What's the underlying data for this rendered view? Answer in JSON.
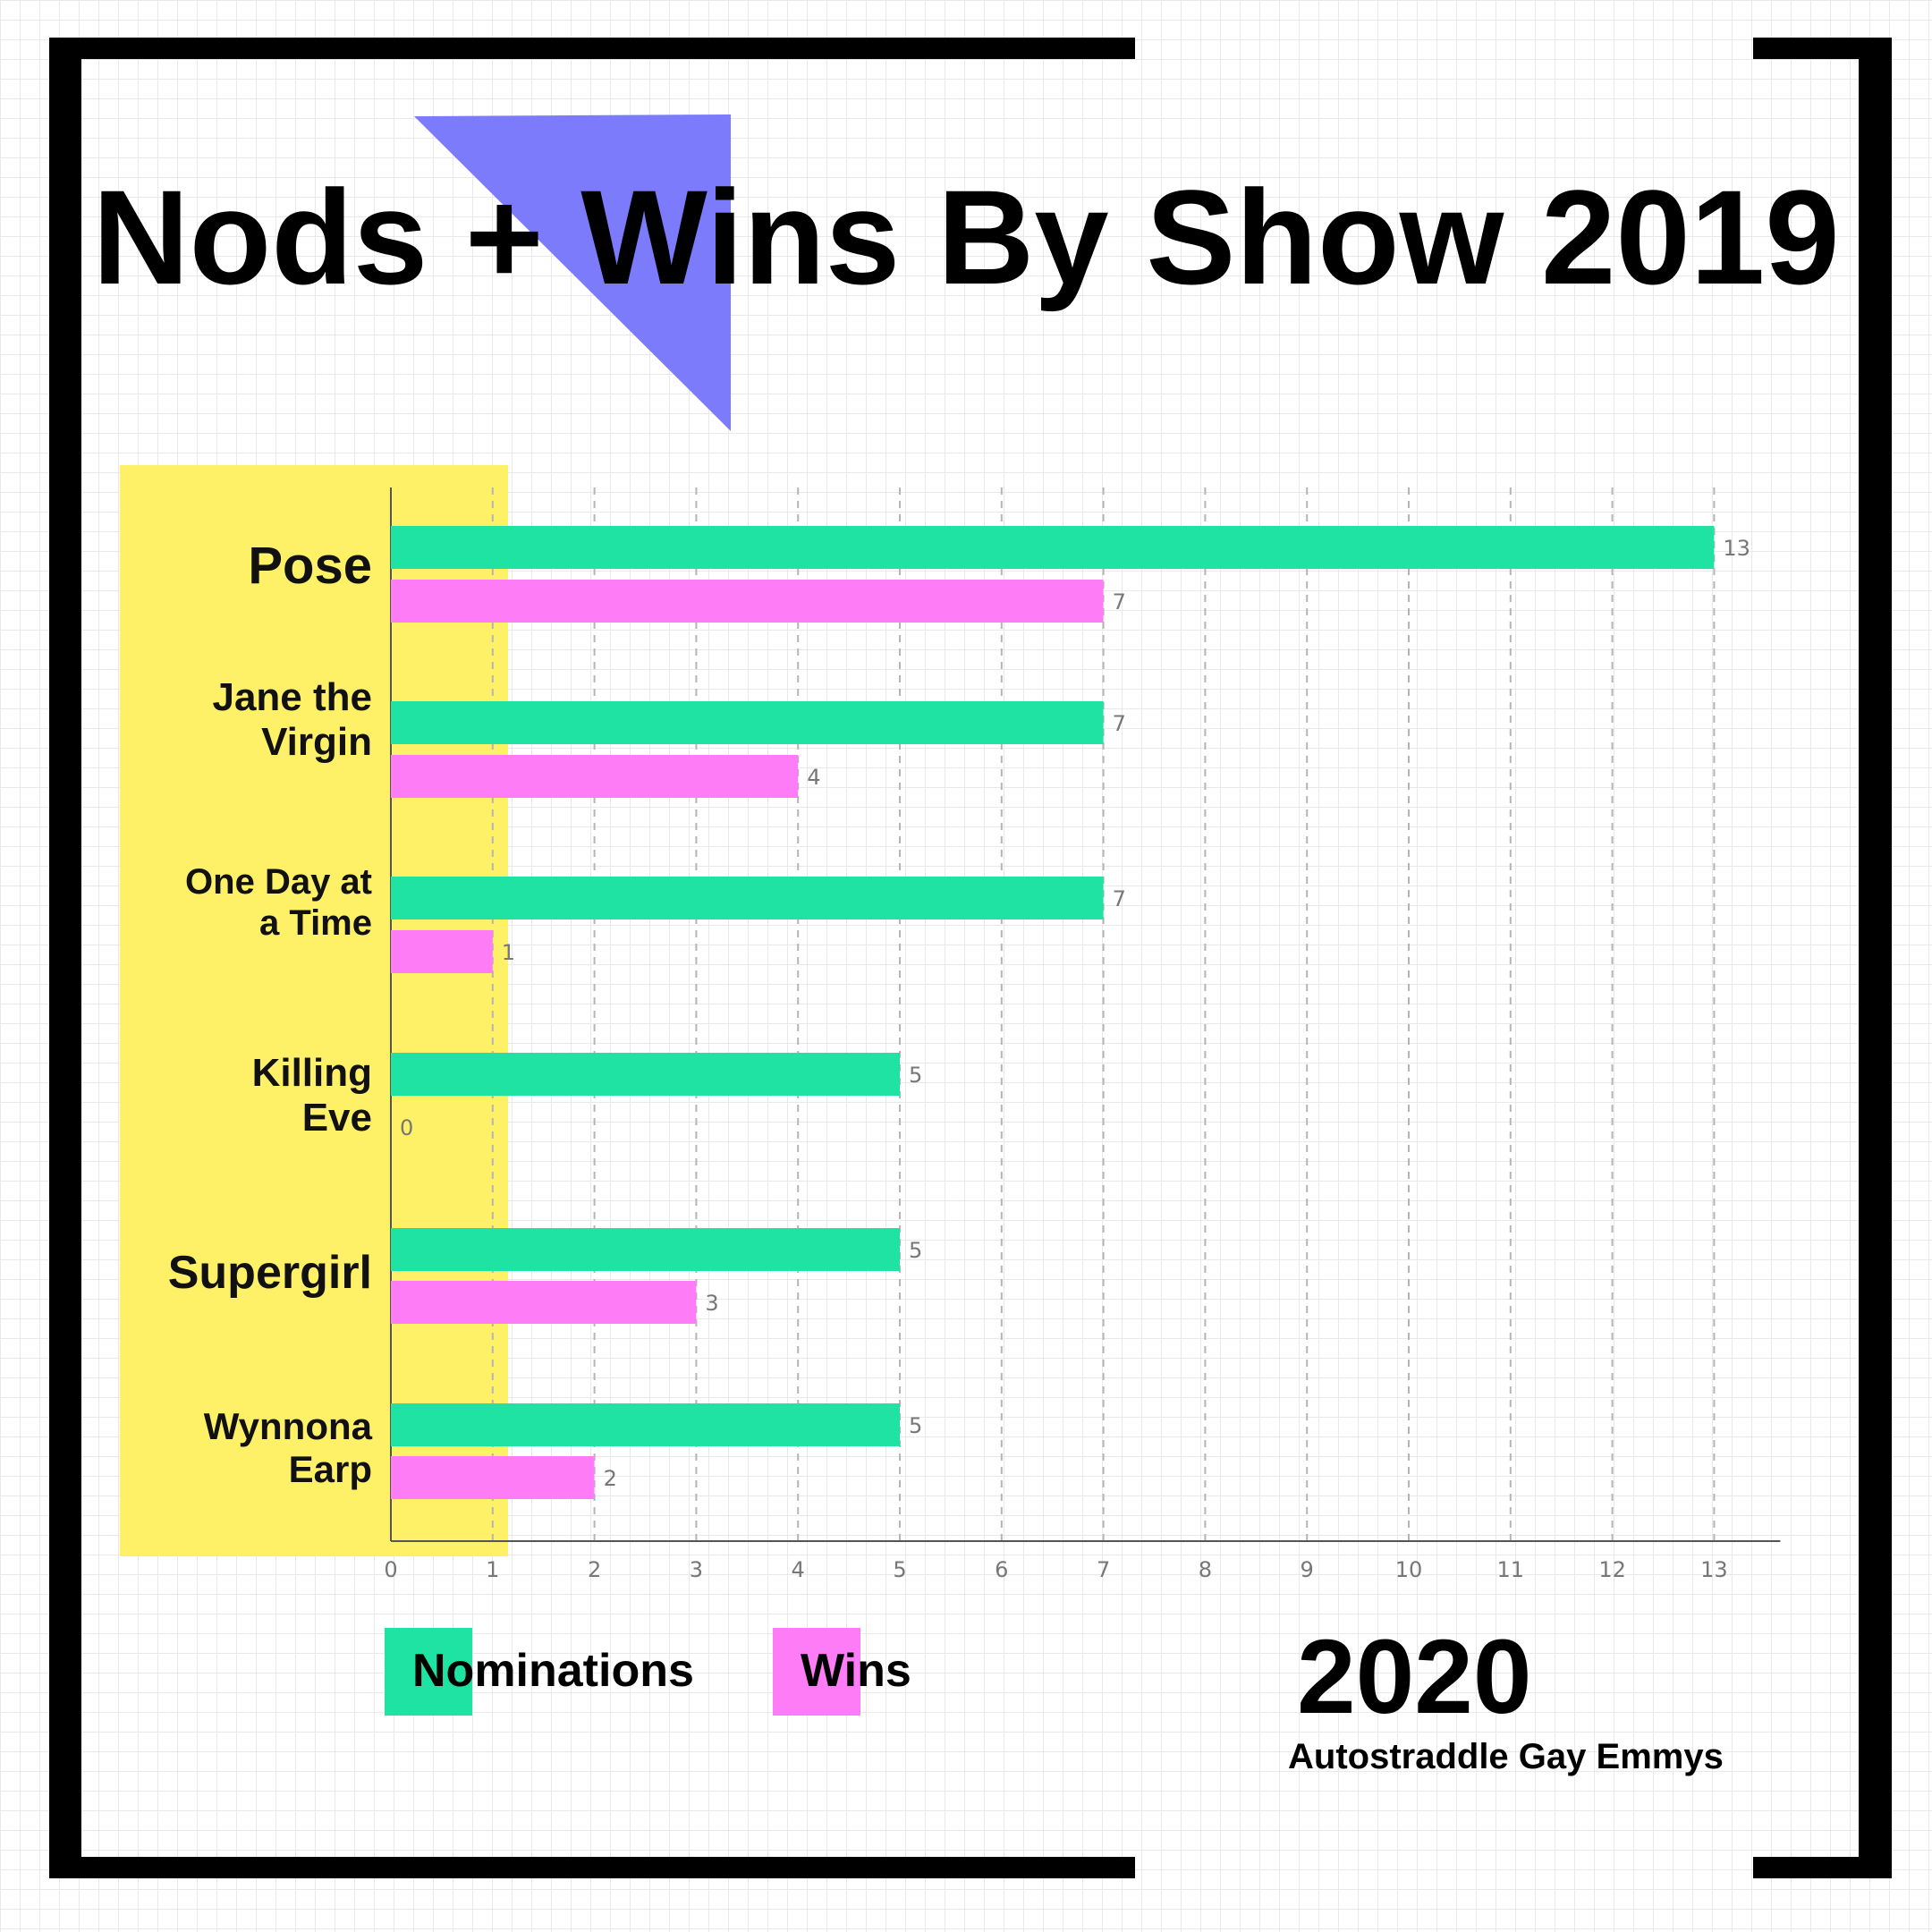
{
  "title": "Nods + Wins By Show 2019",
  "footer": {
    "year": "2020",
    "subtitle": "Autostraddle Gay Emmys"
  },
  "colors": {
    "nominations": "#1ee3a2",
    "wins": "#ff7cf7",
    "highlight": "#fef067",
    "triangle": "#7b7bfc",
    "frame": "#000000"
  },
  "chart_data": {
    "type": "bar",
    "orientation": "horizontal",
    "categories": [
      "Pose",
      "Jane the\nVirgin",
      "One Day at\na Time",
      "Killing\nEve",
      "Supergirl",
      "Wynnona\nEarp"
    ],
    "series": [
      {
        "name": "Nominations",
        "values": [
          13,
          7,
          7,
          5,
          5,
          5
        ]
      },
      {
        "name": "Wins",
        "values": [
          7,
          4,
          1,
          0,
          3,
          2
        ]
      }
    ],
    "xlim": [
      0,
      13.65
    ],
    "xticks": [
      0,
      1,
      2,
      3,
      4,
      5,
      6,
      7,
      8,
      9,
      10,
      11,
      12,
      13
    ],
    "grid": "vertical dashed",
    "legend": "bottom-left"
  }
}
